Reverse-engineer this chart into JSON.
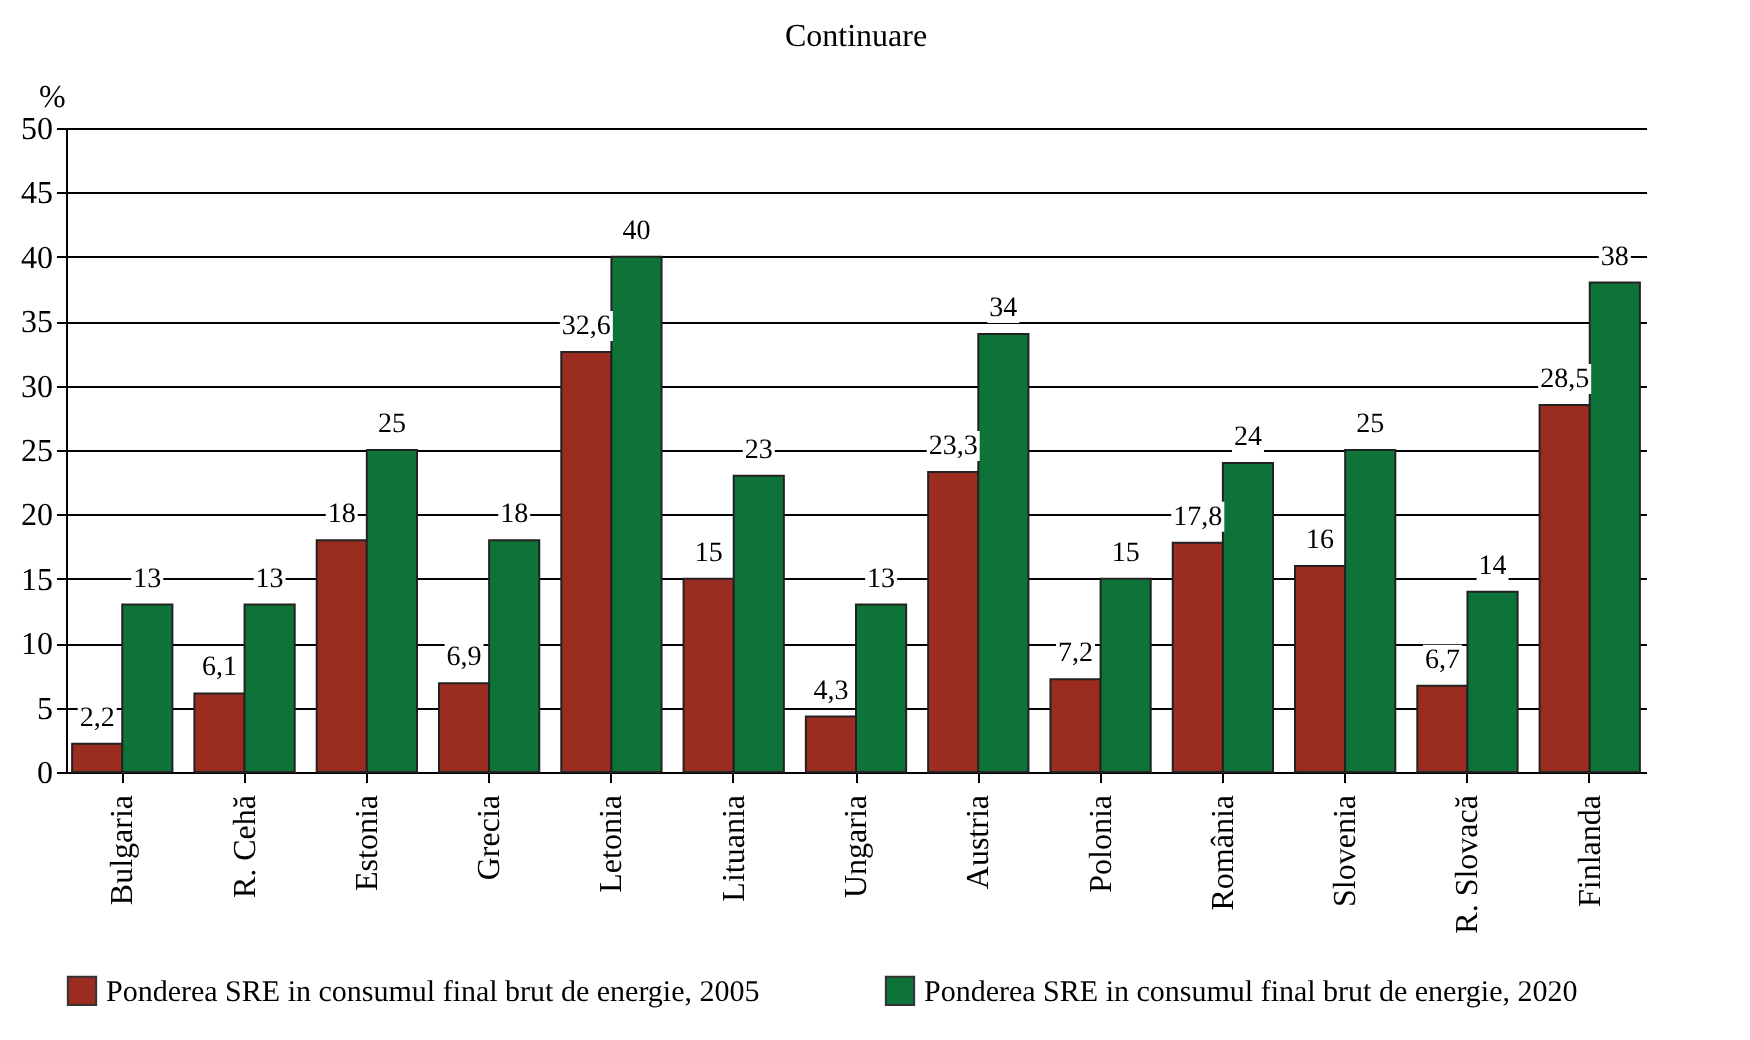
{
  "chart_data": {
    "type": "bar",
    "title": "Continuare",
    "ylabel": "%",
    "categories": [
      "Bulgaria",
      "R. Cehă",
      "Estonia",
      "Grecia",
      "Letonia",
      "Lituania",
      "Ungaria",
      "Austria",
      "Polonia",
      "România",
      "Slovenia",
      "R. Slovacă",
      "Finlanda"
    ],
    "series": [
      {
        "name": "Ponderea SRE in consumul final brut de energie, 2005",
        "color": "#9b2d20",
        "values": [
          2.2,
          6.1,
          18,
          6.9,
          32.6,
          15,
          4.3,
          23.3,
          7.2,
          17.8,
          16,
          6.7,
          28.5
        ],
        "value_labels": [
          "2,2",
          "6,1",
          "18",
          "6,9",
          "32,6",
          "15",
          "4,3",
          "23,3",
          "7,2",
          "17,8",
          "16",
          "6,7",
          "28,5"
        ]
      },
      {
        "name": "Ponderea SRE in consumul final brut de energie, 2020",
        "color": "#0d7339",
        "values": [
          13,
          13,
          25,
          18,
          40,
          23,
          13,
          34,
          15,
          24,
          25,
          14,
          38
        ],
        "value_labels": [
          "13",
          "13",
          "25",
          "18",
          "40",
          "23",
          "13",
          "34",
          "15",
          "24",
          "25",
          "14",
          "38"
        ]
      }
    ],
    "ylim": [
      0,
      50
    ],
    "yticks": [
      0,
      5,
      10,
      15,
      20,
      25,
      30,
      35,
      40,
      45,
      50
    ],
    "grid": "y",
    "legend": "bottom"
  }
}
